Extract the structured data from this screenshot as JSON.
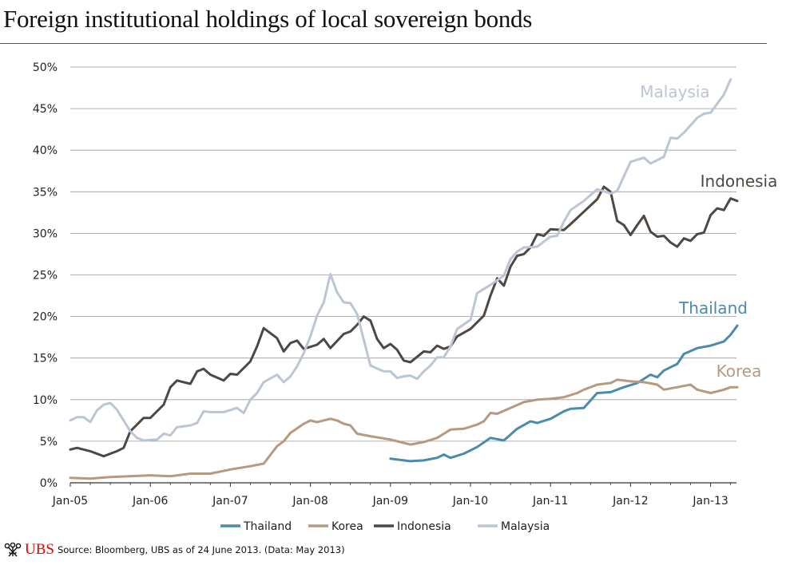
{
  "title": "Foreign institutional holdings of local sovereign bonds",
  "footer": {
    "logo_text": "UBS",
    "source": "Source: Bloomberg, UBS as of 24 June 2013. (Data: May 2013)"
  },
  "chart_data": {
    "type": "line",
    "title": "Foreign institutional holdings of local sovereign bonds",
    "xlabel": "",
    "ylabel": "",
    "ylim": [
      0,
      50
    ],
    "y_ticks": [
      "0%",
      "5%",
      "10%",
      "15%",
      "20%",
      "25%",
      "30%",
      "35%",
      "40%",
      "45%",
      "50%"
    ],
    "x_ticks": [
      "Jan-05",
      "Jan-06",
      "Jan-07",
      "Jan-08",
      "Jan-09",
      "Jan-10",
      "Jan-11",
      "Jan-12",
      "Jan-13"
    ],
    "grid": true,
    "legend_position": "bottom",
    "series": [
      {
        "name": "Thailand",
        "color": "#4a8bab",
        "label": "Thailand",
        "points": [
          [
            "2009-01",
            2.9
          ],
          [
            "2009-03",
            2.7
          ],
          [
            "2009-04",
            2.6
          ],
          [
            "2009-06",
            2.7
          ],
          [
            "2009-08",
            3.0
          ],
          [
            "2009-09",
            3.4
          ],
          [
            "2009-10",
            3.0
          ],
          [
            "2009-12",
            3.5
          ],
          [
            "2010-02",
            4.3
          ],
          [
            "2010-04",
            5.4
          ],
          [
            "2010-06",
            5.1
          ],
          [
            "2010-08",
            6.5
          ],
          [
            "2010-10",
            7.4
          ],
          [
            "2010-11",
            7.2
          ],
          [
            "2011-01",
            7.7
          ],
          [
            "2011-03",
            8.6
          ],
          [
            "2011-04",
            8.9
          ],
          [
            "2011-06",
            9.0
          ],
          [
            "2011-08",
            10.8
          ],
          [
            "2011-10",
            10.9
          ],
          [
            "2011-12",
            11.5
          ],
          [
            "2012-02",
            12.0
          ],
          [
            "2012-04",
            13.0
          ],
          [
            "2012-05",
            12.7
          ],
          [
            "2012-06",
            13.5
          ],
          [
            "2012-08",
            14.3
          ],
          [
            "2012-09",
            15.5
          ],
          [
            "2012-11",
            16.2
          ],
          [
            "2013-01",
            16.5
          ],
          [
            "2013-03",
            17.0
          ],
          [
            "2013-04",
            17.8
          ],
          [
            "2013-05",
            18.9
          ]
        ]
      },
      {
        "name": "Korea",
        "color": "#b59a80",
        "label": "Korea",
        "points": [
          [
            "2005-01",
            0.6
          ],
          [
            "2005-04",
            0.5
          ],
          [
            "2005-07",
            0.7
          ],
          [
            "2005-10",
            0.8
          ],
          [
            "2006-01",
            0.9
          ],
          [
            "2006-04",
            0.8
          ],
          [
            "2006-07",
            1.1
          ],
          [
            "2006-10",
            1.1
          ],
          [
            "2007-01",
            1.6
          ],
          [
            "2007-04",
            2.0
          ],
          [
            "2007-06",
            2.3
          ],
          [
            "2007-08",
            4.4
          ],
          [
            "2007-09",
            5.0
          ],
          [
            "2007-10",
            6.0
          ],
          [
            "2007-12",
            7.1
          ],
          [
            "2008-01",
            7.5
          ],
          [
            "2008-02",
            7.3
          ],
          [
            "2008-04",
            7.7
          ],
          [
            "2008-05",
            7.5
          ],
          [
            "2008-06",
            7.1
          ],
          [
            "2008-07",
            6.9
          ],
          [
            "2008-08",
            5.9
          ],
          [
            "2008-10",
            5.6
          ],
          [
            "2009-01",
            5.2
          ],
          [
            "2009-03",
            4.8
          ],
          [
            "2009-04",
            4.6
          ],
          [
            "2009-06",
            4.9
          ],
          [
            "2009-08",
            5.4
          ],
          [
            "2009-10",
            6.4
          ],
          [
            "2009-12",
            6.5
          ],
          [
            "2010-02",
            7.0
          ],
          [
            "2010-03",
            7.4
          ],
          [
            "2010-04",
            8.4
          ],
          [
            "2010-05",
            8.3
          ],
          [
            "2010-07",
            9.0
          ],
          [
            "2010-09",
            9.7
          ],
          [
            "2010-11",
            10.0
          ],
          [
            "2011-01",
            10.1
          ],
          [
            "2011-03",
            10.3
          ],
          [
            "2011-05",
            10.8
          ],
          [
            "2011-06",
            11.2
          ],
          [
            "2011-08",
            11.8
          ],
          [
            "2011-10",
            12.0
          ],
          [
            "2011-11",
            12.4
          ],
          [
            "2012-01",
            12.2
          ],
          [
            "2012-03",
            12.1
          ],
          [
            "2012-05",
            11.8
          ],
          [
            "2012-06",
            11.2
          ],
          [
            "2012-08",
            11.5
          ],
          [
            "2012-10",
            11.8
          ],
          [
            "2012-11",
            11.2
          ],
          [
            "2013-01",
            10.8
          ],
          [
            "2013-03",
            11.2
          ],
          [
            "2013-04",
            11.5
          ],
          [
            "2013-05",
            11.5
          ]
        ]
      },
      {
        "name": "Indonesia",
        "color": "#4d4843",
        "label": "Indonesia",
        "points": [
          [
            "2005-01",
            4.0
          ],
          [
            "2005-02",
            4.2
          ],
          [
            "2005-04",
            3.8
          ],
          [
            "2005-06",
            3.2
          ],
          [
            "2005-08",
            3.8
          ],
          [
            "2005-09",
            4.2
          ],
          [
            "2005-10",
            6.2
          ],
          [
            "2005-11",
            7.0
          ],
          [
            "2005-12",
            7.8
          ],
          [
            "2006-01",
            7.8
          ],
          [
            "2006-03",
            9.4
          ],
          [
            "2006-04",
            11.5
          ],
          [
            "2006-05",
            12.3
          ],
          [
            "2006-07",
            11.9
          ],
          [
            "2006-08",
            13.4
          ],
          [
            "2006-09",
            13.7
          ],
          [
            "2006-10",
            13.0
          ],
          [
            "2006-12",
            12.3
          ],
          [
            "2007-01",
            13.1
          ],
          [
            "2007-02",
            13.0
          ],
          [
            "2007-04",
            14.6
          ],
          [
            "2007-05",
            16.4
          ],
          [
            "2007-06",
            18.6
          ],
          [
            "2007-08",
            17.4
          ],
          [
            "2007-09",
            15.8
          ],
          [
            "2007-10",
            16.8
          ],
          [
            "2007-11",
            17.1
          ],
          [
            "2007-12",
            16.1
          ],
          [
            "2008-02",
            16.6
          ],
          [
            "2008-03",
            17.3
          ],
          [
            "2008-04",
            16.2
          ],
          [
            "2008-06",
            17.9
          ],
          [
            "2008-07",
            18.2
          ],
          [
            "2008-08",
            19.0
          ],
          [
            "2008-09",
            20.0
          ],
          [
            "2008-10",
            19.5
          ],
          [
            "2008-11",
            17.3
          ],
          [
            "2008-12",
            16.2
          ],
          [
            "2009-01",
            16.7
          ],
          [
            "2009-02",
            16.0
          ],
          [
            "2009-03",
            14.7
          ],
          [
            "2009-04",
            14.5
          ],
          [
            "2009-06",
            15.8
          ],
          [
            "2009-07",
            15.7
          ],
          [
            "2009-08",
            16.5
          ],
          [
            "2009-09",
            16.1
          ],
          [
            "2009-10",
            16.4
          ],
          [
            "2009-11",
            17.6
          ],
          [
            "2010-01",
            18.5
          ],
          [
            "2010-03",
            20.1
          ],
          [
            "2010-04",
            22.5
          ],
          [
            "2010-05",
            24.6
          ],
          [
            "2010-06",
            23.7
          ],
          [
            "2010-07",
            26.0
          ],
          [
            "2010-08",
            27.3
          ],
          [
            "2010-09",
            27.5
          ],
          [
            "2010-10",
            28.3
          ],
          [
            "2010-11",
            29.9
          ],
          [
            "2010-12",
            29.7
          ],
          [
            "2011-01",
            30.5
          ],
          [
            "2011-03",
            30.4
          ],
          [
            "2011-04",
            31.1
          ],
          [
            "2011-06",
            32.6
          ],
          [
            "2011-08",
            34.1
          ],
          [
            "2011-09",
            35.6
          ],
          [
            "2011-10",
            35.0
          ],
          [
            "2011-11",
            31.5
          ],
          [
            "2011-12",
            31.0
          ],
          [
            "2012-01",
            29.8
          ],
          [
            "2012-02",
            31.0
          ],
          [
            "2012-03",
            32.1
          ],
          [
            "2012-04",
            30.2
          ],
          [
            "2012-05",
            29.6
          ],
          [
            "2012-06",
            29.7
          ],
          [
            "2012-07",
            28.9
          ],
          [
            "2012-08",
            28.4
          ],
          [
            "2012-09",
            29.4
          ],
          [
            "2012-10",
            29.1
          ],
          [
            "2012-11",
            29.9
          ],
          [
            "2012-12",
            30.1
          ],
          [
            "2013-01",
            32.2
          ],
          [
            "2013-02",
            33.0
          ],
          [
            "2013-03",
            32.8
          ],
          [
            "2013-04",
            34.2
          ],
          [
            "2013-05",
            33.9
          ]
        ]
      },
      {
        "name": "Malaysia",
        "color": "#bcc5d3",
        "label": "Malaysia",
        "points": [
          [
            "2005-01",
            7.5
          ],
          [
            "2005-02",
            7.9
          ],
          [
            "2005-03",
            7.9
          ],
          [
            "2005-04",
            7.3
          ],
          [
            "2005-05",
            8.7
          ],
          [
            "2005-06",
            9.4
          ],
          [
            "2005-07",
            9.6
          ],
          [
            "2005-08",
            8.8
          ],
          [
            "2005-10",
            6.2
          ],
          [
            "2005-11",
            5.4
          ],
          [
            "2005-12",
            5.1
          ],
          [
            "2006-02",
            5.2
          ],
          [
            "2006-03",
            5.9
          ],
          [
            "2006-04",
            5.7
          ],
          [
            "2006-05",
            6.7
          ],
          [
            "2006-07",
            6.9
          ],
          [
            "2006-08",
            7.2
          ],
          [
            "2006-09",
            8.6
          ],
          [
            "2006-10",
            8.5
          ],
          [
            "2006-12",
            8.5
          ],
          [
            "2007-02",
            9.0
          ],
          [
            "2007-03",
            8.4
          ],
          [
            "2007-04",
            10.0
          ],
          [
            "2007-05",
            10.8
          ],
          [
            "2007-06",
            12.1
          ],
          [
            "2007-08",
            13.0
          ],
          [
            "2007-09",
            12.1
          ],
          [
            "2007-10",
            12.8
          ],
          [
            "2007-11",
            14.0
          ],
          [
            "2007-12",
            15.6
          ],
          [
            "2008-01",
            17.6
          ],
          [
            "2008-02",
            20.1
          ],
          [
            "2008-03",
            21.7
          ],
          [
            "2008-04",
            25.1
          ],
          [
            "2008-05",
            22.9
          ],
          [
            "2008-06",
            21.7
          ],
          [
            "2008-07",
            21.6
          ],
          [
            "2008-08",
            20.3
          ],
          [
            "2008-09",
            17.2
          ],
          [
            "2008-10",
            14.1
          ],
          [
            "2008-12",
            13.4
          ],
          [
            "2009-01",
            13.4
          ],
          [
            "2009-02",
            12.6
          ],
          [
            "2009-03",
            12.8
          ],
          [
            "2009-04",
            12.9
          ],
          [
            "2009-05",
            12.5
          ],
          [
            "2009-06",
            13.4
          ],
          [
            "2009-07",
            14.1
          ],
          [
            "2009-08",
            15.1
          ],
          [
            "2009-09",
            15.1
          ],
          [
            "2009-10",
            16.4
          ],
          [
            "2009-11",
            18.5
          ],
          [
            "2010-01",
            19.6
          ],
          [
            "2010-02",
            22.8
          ],
          [
            "2010-03",
            23.3
          ],
          [
            "2010-04",
            23.8
          ],
          [
            "2010-06",
            24.9
          ],
          [
            "2010-07",
            26.9
          ],
          [
            "2010-08",
            27.8
          ],
          [
            "2010-09",
            28.3
          ],
          [
            "2010-11",
            28.4
          ],
          [
            "2011-01",
            29.6
          ],
          [
            "2011-02",
            29.7
          ],
          [
            "2011-03",
            31.4
          ],
          [
            "2011-04",
            32.8
          ],
          [
            "2011-06",
            33.9
          ],
          [
            "2011-08",
            35.3
          ],
          [
            "2011-10",
            34.8
          ],
          [
            "2011-11",
            35.1
          ],
          [
            "2012-01",
            38.6
          ],
          [
            "2012-03",
            39.1
          ],
          [
            "2012-04",
            38.4
          ],
          [
            "2012-06",
            39.2
          ],
          [
            "2012-07",
            41.5
          ],
          [
            "2012-08",
            41.4
          ],
          [
            "2012-09",
            42.1
          ],
          [
            "2012-11",
            43.9
          ],
          [
            "2012-12",
            44.4
          ],
          [
            "2013-01",
            44.5
          ],
          [
            "2013-03",
            46.7
          ],
          [
            "2013-04",
            48.5
          ]
        ]
      }
    ]
  }
}
